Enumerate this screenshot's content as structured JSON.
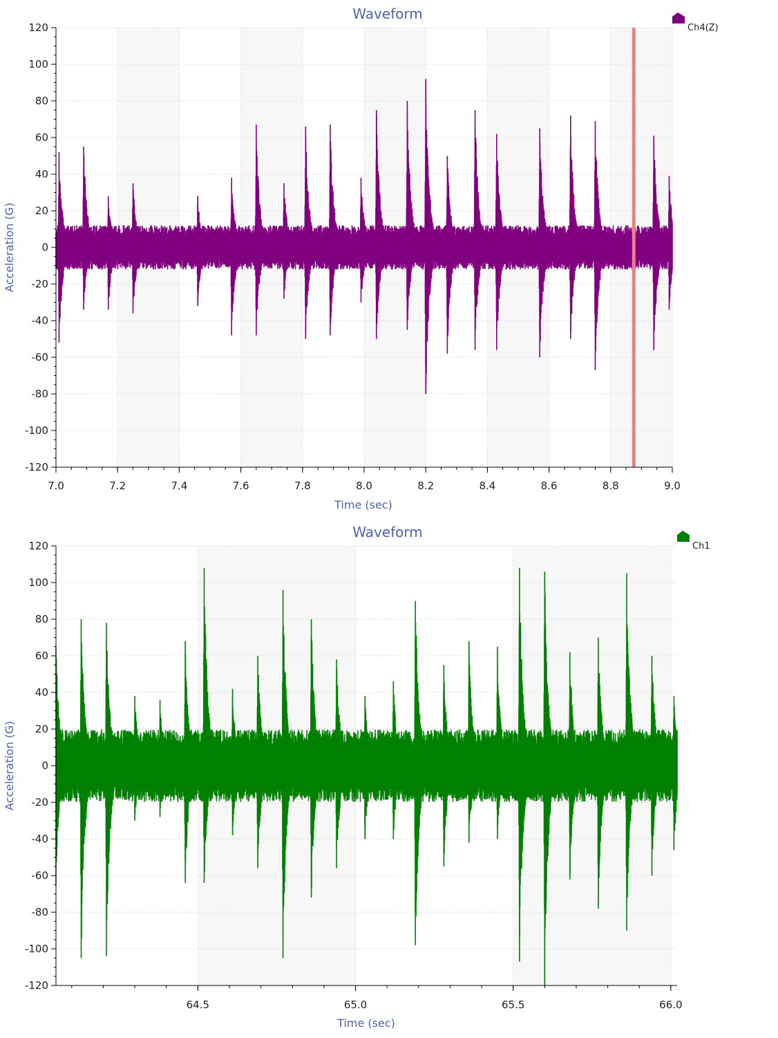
{
  "chart_data": [
    {
      "type": "line",
      "title": "Waveform",
      "xlabel": "Time (sec)",
      "ylabel": "Acceleration (G)",
      "xlim": [
        7.0,
        9.0
      ],
      "ylim": [
        -120,
        120
      ],
      "x_ticks": [
        7.0,
        7.2,
        7.4,
        7.6,
        7.8,
        8.0,
        8.2,
        8.4,
        8.6,
        8.8,
        9.0
      ],
      "x_tick_labels": [
        "7.0",
        "7.2",
        "7.4",
        "7.6",
        "7.8",
        "8.0",
        "8.2",
        "8.4",
        "8.6",
        "8.8",
        "9.0"
      ],
      "y_ticks": [
        120,
        100,
        80,
        60,
        40,
        20,
        0,
        -20,
        -40,
        -60,
        -80,
        -100,
        -120
      ],
      "y_tick_labels": [
        "120",
        "100",
        "80",
        "60",
        "40",
        "20",
        "0",
        "-20",
        "-40",
        "-60",
        "-80",
        "-100",
        "-120"
      ],
      "grid": true,
      "background_bands": true,
      "legend_placement": "top-right",
      "cursor_x": 8.875,
      "cursor_color": "#f08080",
      "series": [
        {
          "name": "Ch4(Z)",
          "color": "#800080",
          "baseline_amplitude": 11,
          "peaks": [
            {
              "x": 7.01,
              "max": 52,
              "min": -52
            },
            {
              "x": 7.09,
              "max": 55,
              "min": -34
            },
            {
              "x": 7.17,
              "max": 28,
              "min": -34
            },
            {
              "x": 7.25,
              "max": 35,
              "min": -36
            },
            {
              "x": 7.46,
              "max": 28,
              "min": -32
            },
            {
              "x": 7.57,
              "max": 38,
              "min": -48
            },
            {
              "x": 7.65,
              "max": 67,
              "min": -48
            },
            {
              "x": 7.74,
              "max": 35,
              "min": -28
            },
            {
              "x": 7.81,
              "max": 66,
              "min": -50
            },
            {
              "x": 7.89,
              "max": 67,
              "min": -48
            },
            {
              "x": 7.99,
              "max": 38,
              "min": -30
            },
            {
              "x": 8.04,
              "max": 75,
              "min": -50
            },
            {
              "x": 8.14,
              "max": 80,
              "min": -45
            },
            {
              "x": 8.2,
              "max": 92,
              "min": -80
            },
            {
              "x": 8.27,
              "max": 50,
              "min": -58
            },
            {
              "x": 8.36,
              "max": 75,
              "min": -56
            },
            {
              "x": 8.43,
              "max": 62,
              "min": -56
            },
            {
              "x": 8.57,
              "max": 65,
              "min": -60
            },
            {
              "x": 8.67,
              "max": 72,
              "min": -50
            },
            {
              "x": 8.75,
              "max": 69,
              "min": -67
            },
            {
              "x": 8.94,
              "max": 61,
              "min": -56
            },
            {
              "x": 8.99,
              "max": 39,
              "min": -34
            }
          ]
        }
      ]
    },
    {
      "type": "line",
      "title": "Waveform",
      "xlabel": "Time (sec)",
      "ylabel": "Acceleration (G)",
      "xlim": [
        64.05,
        66.02
      ],
      "ylim": [
        -120,
        120
      ],
      "x_ticks": [
        64.5,
        65.0,
        65.5,
        66.0
      ],
      "x_tick_labels": [
        "64.5",
        "65.0",
        "65.5",
        "66.0"
      ],
      "y_ticks": [
        120,
        100,
        80,
        60,
        40,
        20,
        0,
        -20,
        -40,
        -60,
        -80,
        -100,
        -120
      ],
      "y_tick_labels": [
        "120",
        "100",
        "80",
        "60",
        "40",
        "20",
        "0",
        "-20",
        "-40",
        "-60",
        "-80",
        "-100",
        "-120"
      ],
      "grid": true,
      "background_bands": true,
      "legend_placement": "top-right",
      "series": [
        {
          "name": "Ch1",
          "color": "#008000",
          "baseline_amplitude": 18,
          "peaks": [
            {
              "x": 64.05,
              "max": 65,
              "min": -65
            },
            {
              "x": 64.13,
              "max": 80,
              "min": -105
            },
            {
              "x": 64.21,
              "max": 78,
              "min": -104
            },
            {
              "x": 64.3,
              "max": 38,
              "min": -30
            },
            {
              "x": 64.38,
              "max": 36,
              "min": -28
            },
            {
              "x": 64.46,
              "max": 68,
              "min": -64
            },
            {
              "x": 64.52,
              "max": 108,
              "min": -64
            },
            {
              "x": 64.61,
              "max": 42,
              "min": -38
            },
            {
              "x": 64.69,
              "max": 60,
              "min": -56
            },
            {
              "x": 64.77,
              "max": 96,
              "min": -105
            },
            {
              "x": 64.86,
              "max": 80,
              "min": -72
            },
            {
              "x": 64.94,
              "max": 58,
              "min": -56
            },
            {
              "x": 65.03,
              "max": 38,
              "min": -40
            },
            {
              "x": 65.12,
              "max": 46,
              "min": -40
            },
            {
              "x": 65.19,
              "max": 90,
              "min": -98
            },
            {
              "x": 65.28,
              "max": 55,
              "min": -55
            },
            {
              "x": 65.36,
              "max": 68,
              "min": -42
            },
            {
              "x": 65.45,
              "max": 65,
              "min": -40
            },
            {
              "x": 65.52,
              "max": 108,
              "min": -107
            },
            {
              "x": 65.6,
              "max": 106,
              "min": -120
            },
            {
              "x": 65.68,
              "max": 62,
              "min": -62
            },
            {
              "x": 65.77,
              "max": 70,
              "min": -78
            },
            {
              "x": 65.86,
              "max": 105,
              "min": -90
            },
            {
              "x": 65.94,
              "max": 60,
              "min": -60
            },
            {
              "x": 66.01,
              "max": 38,
              "min": -46
            }
          ]
        }
      ]
    }
  ]
}
